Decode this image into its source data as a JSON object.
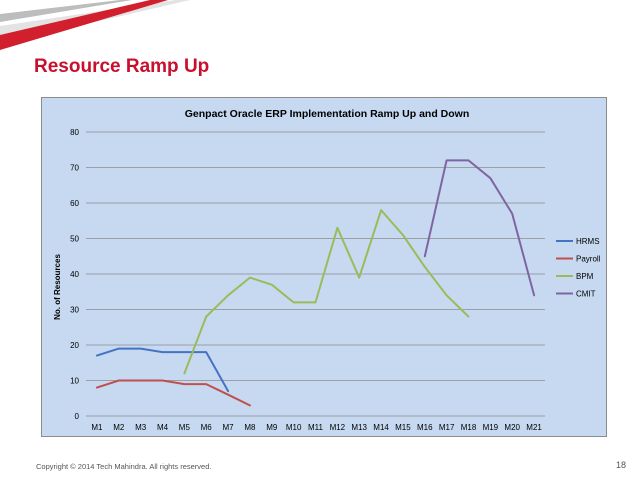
{
  "slide": {
    "title": "Resource Ramp Up",
    "copyright": "Copyright © 2014 Tech Mahindra. All rights reserved.",
    "page_number": "18",
    "colors": {
      "title": "#c8102e",
      "panel": "#c6d9f1",
      "accent_red": "#d11f2e"
    }
  },
  "chart_data": {
    "type": "line",
    "title": "Genpact Oracle ERP Implementation Ramp Up and Down",
    "xlabel": "",
    "ylabel": "No. of Resources",
    "categories": [
      "M1",
      "M2",
      "M3",
      "M4",
      "M5",
      "M6",
      "M7",
      "M8",
      "M9",
      "M10",
      "M11",
      "M12",
      "M13",
      "M14",
      "M15",
      "M16",
      "M17",
      "M18",
      "M19",
      "M20",
      "M21"
    ],
    "ylim": [
      0,
      80
    ],
    "yticks": [
      "0",
      "10",
      "20",
      "30",
      "40",
      "50",
      "60",
      "70",
      "80"
    ],
    "grid": true,
    "legend": "right",
    "series": [
      {
        "name": "HRMS",
        "color": "#4472c4",
        "values": [
          17,
          19,
          19,
          18,
          18,
          18,
          7,
          null,
          null,
          null,
          null,
          null,
          null,
          null,
          null,
          null,
          null,
          null,
          null,
          null,
          null
        ]
      },
      {
        "name": "Payroll",
        "color": "#c0504d",
        "values": [
          8,
          10,
          10,
          10,
          9,
          9,
          6,
          3,
          null,
          null,
          null,
          null,
          null,
          null,
          null,
          null,
          null,
          null,
          null,
          null,
          null
        ]
      },
      {
        "name": "BPM",
        "color": "#9bbb59",
        "values": [
          null,
          null,
          null,
          null,
          12,
          28,
          34,
          39,
          37,
          32,
          32,
          53,
          39,
          58,
          51,
          42,
          34,
          28,
          null,
          null,
          null
        ]
      },
      {
        "name": "CMIT",
        "color": "#8064a2",
        "values": [
          null,
          null,
          null,
          null,
          null,
          null,
          null,
          null,
          null,
          null,
          null,
          null,
          null,
          null,
          null,
          45,
          72,
          72,
          67,
          57,
          34
        ]
      }
    ]
  }
}
